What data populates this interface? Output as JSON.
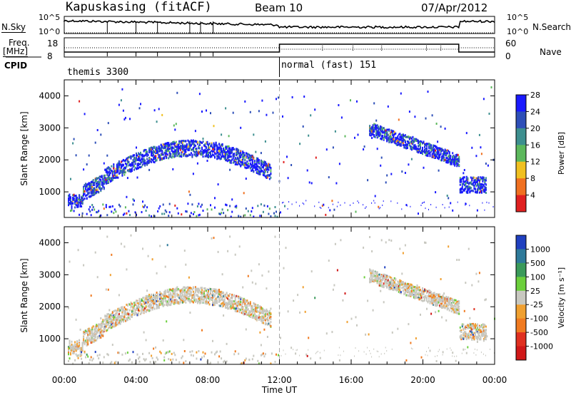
{
  "header": {
    "station": "Kapuskasing (fitACF)",
    "beam": "Beam 10",
    "date": "07/Apr/2012"
  },
  "top_panel": {
    "left_label": "N.Sky",
    "left_ticks": [
      "10^5",
      "10^0"
    ],
    "right_ticks": [
      "10^5",
      "10^0"
    ],
    "right_label": "N.Search"
  },
  "freq_panel": {
    "left_label_1": "Freq.",
    "left_label_2": "[MHz]",
    "left_ticks": [
      "18",
      "8"
    ],
    "right_ticks": [
      "60",
      "0"
    ],
    "right_label": "Nave"
  },
  "cpid": {
    "label": "CPID",
    "mode_1": "themis 3300",
    "mode_2": "normal (fast) 151"
  },
  "chart_data": [
    {
      "type": "heatmap",
      "name": "power",
      "ylabel": "Slant Range [km]",
      "yticks": [
        1000,
        2000,
        3000,
        4000
      ],
      "ylim": [
        200,
        4500
      ],
      "xticks": [
        "00:00",
        "04:00",
        "08:00",
        "12:00",
        "16:00",
        "20:00",
        "00:00"
      ],
      "xlim_hours": [
        0,
        24
      ],
      "colorbar": {
        "label": "Power [dB]",
        "ticks": [
          "4",
          "8",
          "12",
          "16",
          "20",
          "24",
          "28"
        ],
        "colors": [
          "#1a1aff",
          "#2e4fb8",
          "#3d8f8f",
          "#5cb85c",
          "#f0c020",
          "#f07020",
          "#e02020"
        ]
      }
    },
    {
      "type": "heatmap",
      "name": "velocity",
      "ylabel": "Slant Range [km]",
      "yticks": [
        1000,
        2000,
        3000,
        4000
      ],
      "ylim": [
        200,
        4500
      ],
      "xticks": [
        "00:00",
        "04:00",
        "08:00",
        "12:00",
        "16:00",
        "20:00",
        "00:00"
      ],
      "xlabel": "Time UT",
      "colorbar": {
        "label": "Velocity [m s⁻¹]",
        "ticks": [
          "1000",
          "500",
          "100",
          "25",
          "-25",
          "-100",
          "-500",
          "-1000"
        ],
        "colors": [
          "#2040c0",
          "#2e7a9a",
          "#3a9a5a",
          "#6ccf3c",
          "#c8c8c0",
          "#f0a030",
          "#f07a20",
          "#e03020",
          "#d01818"
        ]
      }
    }
  ]
}
